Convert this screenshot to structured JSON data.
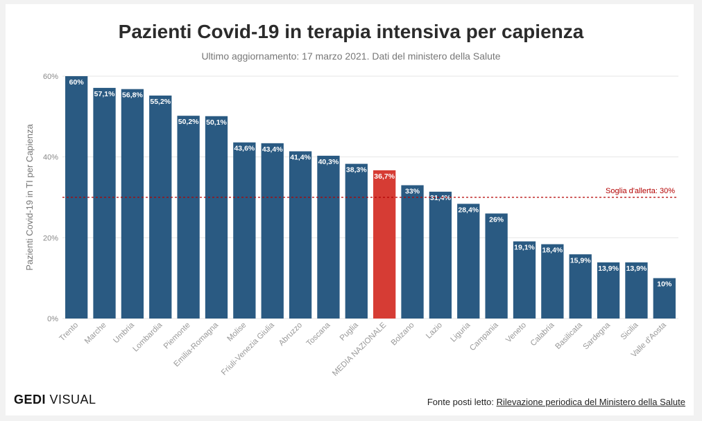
{
  "header": {
    "title": "Pazienti Covid-19 in terapia intensiva per capienza",
    "subtitle": "Ultimo aggiornamento: 17 marzo 2021. Dati del ministero della Salute"
  },
  "footer": {
    "logo_bold": "GEDI",
    "logo_regular": " VISUAL",
    "source_prefix": "Fonte posti letto: ",
    "source_link": "Rilevazione periodica del Ministero della Salute"
  },
  "colors": {
    "bar": "#2a5a82",
    "highlight": "#d63c34",
    "threshold": "#b30000",
    "grid": "#e6e6e6"
  },
  "chart_data": {
    "type": "bar",
    "title": "Pazienti Covid-19 in terapia intensiva per capienza",
    "subtitle": "Ultimo aggiornamento: 17 marzo 2021. Dati del ministero della Salute",
    "xlabel": "",
    "ylabel": "Pazienti Covid-19 in TI per Capienza",
    "ylim": [
      0,
      60
    ],
    "yticks": [
      "0%",
      "20%",
      "40%",
      "60%"
    ],
    "grid": true,
    "categories": [
      "Trento",
      "Marche",
      "Umbria",
      "Lombardia",
      "Piemonte",
      "Emilia-Romagna",
      "Molise",
      "Friuli-Venezia Giulia",
      "Abruzzo",
      "Toscana",
      "Puglia",
      "MEDIA NAZIONALE",
      "Bolzano",
      "Lazio",
      "Liguria",
      "Campania",
      "Veneto",
      "Calabria",
      "Basilicata",
      "Sardegna",
      "Sicilia",
      "Valle d'Aosta"
    ],
    "values": [
      60,
      57.1,
      56.8,
      55.2,
      50.2,
      50.1,
      43.6,
      43.4,
      41.4,
      40.3,
      38.3,
      36.7,
      33,
      31.4,
      28.4,
      26,
      19.1,
      18.4,
      15.9,
      13.9,
      13.9,
      10
    ],
    "data_labels": [
      "60%",
      "57,1%",
      "56,8%",
      "55,2%",
      "50,2%",
      "50,1%",
      "43,6%",
      "43,4%",
      "41,4%",
      "40,3%",
      "38,3%",
      "36,7%",
      "33%",
      "31,4%",
      "28,4%",
      "26%",
      "19,1%",
      "18,4%",
      "15,9%",
      "13,9%",
      "13,9%",
      "10%"
    ],
    "highlight_category": "MEDIA NAZIONALE",
    "threshold": {
      "value": 30,
      "label": "Soglia d'allerta: 30%"
    }
  }
}
